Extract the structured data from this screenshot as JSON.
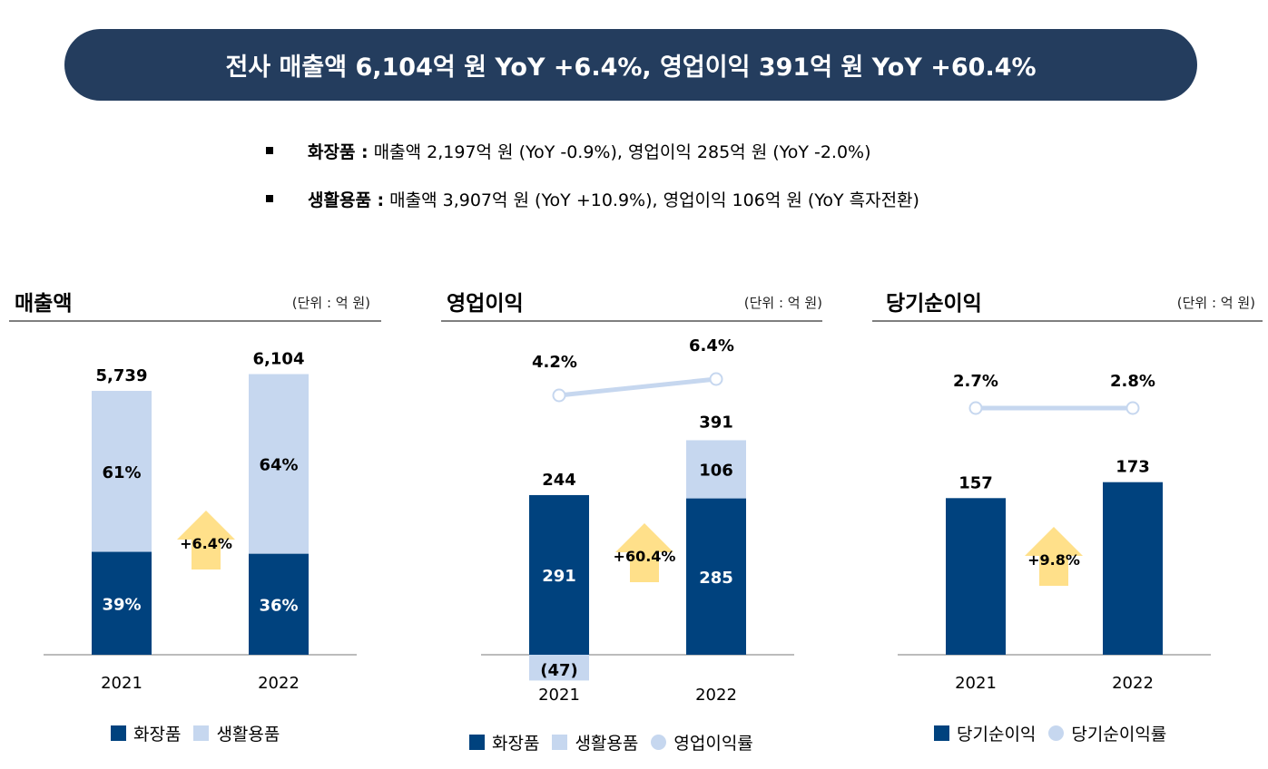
{
  "banner": {
    "text": "전사 매출액 6,104억 원 YoY +6.4%, 영업이익 391억 원 YoY +60.4%"
  },
  "bullets": [
    {
      "label": "화장품 :",
      "text": "매출액 2,197억 원 (YoY -0.9%), 영업이익 285억 원 (YoY -2.0%)"
    },
    {
      "label": "생활용품 :",
      "text": "매출액 3,907억 원 (YoY +10.9%), 영업이익 106억 원 (YoY 흑자전환)"
    }
  ],
  "colors": {
    "dark": "#00427e",
    "light": "#c6d7ef",
    "arrow": "#ffe08a",
    "line": "#c6d7ef",
    "banner": "#243d5e"
  },
  "panels": [
    {
      "title": "매출액",
      "unit": "(단위 : 억 원)",
      "legend": [
        {
          "label": "화장품",
          "kind": "dark"
        },
        {
          "label": "생활용품",
          "kind": "light"
        }
      ]
    },
    {
      "title": "영업이익",
      "unit": "(단위 : 억 원)",
      "legend": [
        {
          "label": "화장품",
          "kind": "dark"
        },
        {
          "label": "생활용품",
          "kind": "light"
        },
        {
          "label": "영업이익률",
          "kind": "dot"
        }
      ]
    },
    {
      "title": "당기순이익",
      "unit": "(단위 : 억 원)",
      "legend": [
        {
          "label": "당기순이익",
          "kind": "dark"
        },
        {
          "label": "당기순이익률",
          "kind": "dot"
        }
      ]
    }
  ],
  "chart_data": [
    {
      "type": "bar",
      "title": "매출액",
      "categories": [
        "2021",
        "2022"
      ],
      "totals": [
        "5,739",
        "6,104"
      ],
      "total_values": [
        5739,
        6104
      ],
      "series": [
        {
          "name": "화장품",
          "share_percent": [
            39,
            36
          ],
          "labels": [
            "39%",
            "36%"
          ]
        },
        {
          "name": "생활용품",
          "share_percent": [
            61,
            64
          ],
          "labels": [
            "61%",
            "64%"
          ]
        }
      ],
      "growth_label": "+6.4%"
    },
    {
      "type": "bar",
      "title": "영업이익",
      "categories": [
        "2021",
        "2022"
      ],
      "totals": [
        "244",
        "391"
      ],
      "total_values": [
        244,
        391
      ],
      "series": [
        {
          "name": "화장품",
          "values": [
            291,
            285
          ],
          "labels": [
            "291",
            "285"
          ]
        },
        {
          "name": "생활용품",
          "values": [
            -47,
            106
          ],
          "labels": [
            "(47)",
            "106"
          ]
        }
      ],
      "margin_series": {
        "name": "영업이익률",
        "values": [
          4.2,
          6.4
        ],
        "labels": [
          "4.2%",
          "6.4%"
        ]
      },
      "growth_label": "+60.4%"
    },
    {
      "type": "bar",
      "title": "당기순이익",
      "categories": [
        "2021",
        "2022"
      ],
      "totals": [
        "157",
        "173"
      ],
      "series": [
        {
          "name": "당기순이익",
          "values": [
            157,
            173
          ],
          "labels": [
            "157",
            "173"
          ]
        }
      ],
      "margin_series": {
        "name": "당기순이익률",
        "values": [
          2.7,
          2.8
        ],
        "labels": [
          "2.7%",
          "2.8%"
        ]
      },
      "growth_label": "+9.8%"
    }
  ]
}
